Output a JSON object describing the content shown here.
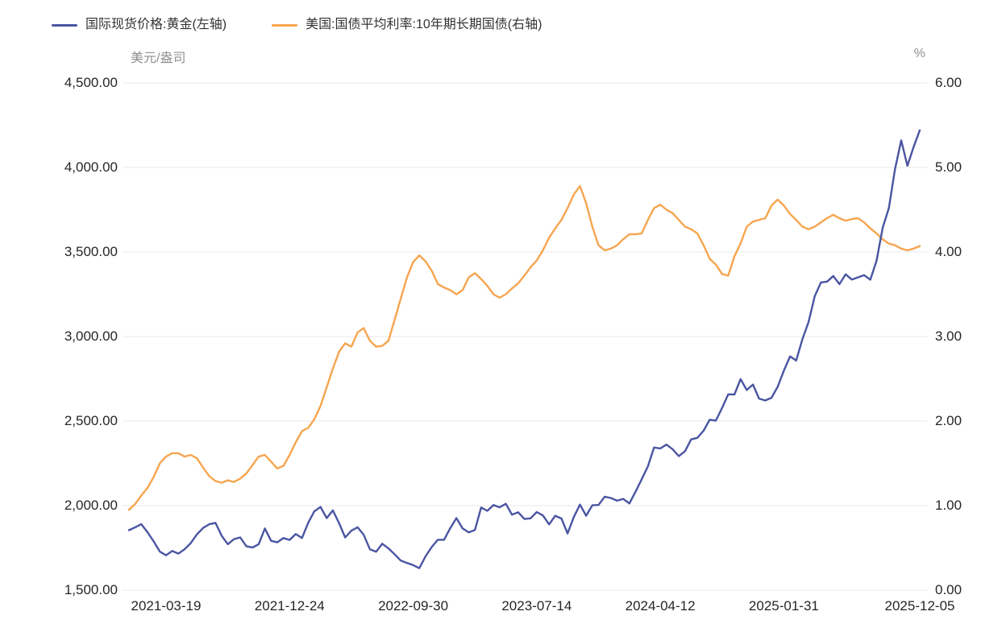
{
  "chart_data": {
    "type": "line",
    "title": "",
    "legend_position": "top-left",
    "grid": "horizontal",
    "grid_color": "#e8e8e8",
    "n_points": 129,
    "x_tick_labels": [
      "2021-03-19",
      "2021-12-24",
      "2022-09-30",
      "2023-07-14",
      "2024-04-12",
      "2025-01-31",
      "2025-12-05"
    ],
    "x_tick_indices": [
      6,
      26,
      46,
      66,
      86,
      106,
      128
    ],
    "left_axis": {
      "label": "美元/盎司",
      "min": 1500,
      "max": 4500,
      "tick_step": 500,
      "tick_labels": [
        "4,500.00",
        "4,000.00",
        "3,500.00",
        "3,000.00",
        "2,500.00",
        "2,000.00",
        "1,500.00"
      ]
    },
    "right_axis": {
      "label": "%",
      "min": 0,
      "max": 6,
      "tick_step": 1,
      "tick_labels": [
        "6.00",
        "5.00",
        "4.00",
        "3.00",
        "2.00",
        "1.00",
        "0.00"
      ]
    },
    "series": [
      {
        "name": "国际现货价格:黄金(左轴)",
        "axis": "left",
        "color": "#4a55a2",
        "values": [
          1855,
          1872,
          1890,
          1843,
          1788,
          1728,
          1706,
          1732,
          1716,
          1742,
          1778,
          1830,
          1868,
          1890,
          1898,
          1822,
          1772,
          1802,
          1812,
          1760,
          1752,
          1772,
          1865,
          1792,
          1783,
          1808,
          1797,
          1832,
          1808,
          1898,
          1966,
          1992,
          1926,
          1972,
          1897,
          1812,
          1852,
          1872,
          1827,
          1742,
          1727,
          1775,
          1747,
          1712,
          1675,
          1661,
          1648,
          1630,
          1700,
          1755,
          1798,
          1798,
          1866,
          1926,
          1865,
          1842,
          1856,
          1989,
          1969,
          2004,
          1990,
          2011,
          1946,
          1961,
          1921,
          1925,
          1962,
          1942,
          1889,
          1940,
          1924,
          1835,
          1932,
          2006,
          1940,
          2002,
          2004,
          2053,
          2045,
          2029,
          2040,
          2013,
          2083,
          2156,
          2233,
          2344,
          2338,
          2361,
          2334,
          2293,
          2322,
          2392,
          2401,
          2443,
          2508,
          2503,
          2578,
          2658,
          2657,
          2748,
          2684,
          2716,
          2633,
          2622,
          2638,
          2703,
          2798,
          2883,
          2858,
          2984,
          3085,
          3238,
          3320,
          3325,
          3358,
          3310,
          3368,
          3337,
          3350,
          3363,
          3336,
          3448,
          3643,
          3760,
          3990,
          4160,
          4010,
          4120,
          4220
        ]
      },
      {
        "name": "美国:国债平均利率:10年期长期国债(右轴)",
        "axis": "right",
        "color": "#f6a54f",
        "values": [
          0.95,
          1.02,
          1.12,
          1.21,
          1.34,
          1.5,
          1.58,
          1.62,
          1.62,
          1.58,
          1.6,
          1.56,
          1.45,
          1.35,
          1.29,
          1.27,
          1.3,
          1.28,
          1.32,
          1.38,
          1.48,
          1.58,
          1.6,
          1.52,
          1.44,
          1.47,
          1.6,
          1.75,
          1.88,
          1.92,
          2.02,
          2.18,
          2.4,
          2.62,
          2.82,
          2.92,
          2.88,
          3.05,
          3.1,
          2.95,
          2.88,
          2.89,
          2.95,
          3.2,
          3.45,
          3.7,
          3.88,
          3.96,
          3.89,
          3.78,
          3.62,
          3.58,
          3.55,
          3.5,
          3.55,
          3.7,
          3.75,
          3.68,
          3.6,
          3.5,
          3.46,
          3.5,
          3.57,
          3.63,
          3.72,
          3.82,
          3.9,
          4.02,
          4.17,
          4.28,
          4.38,
          4.52,
          4.68,
          4.78,
          4.58,
          4.3,
          4.08,
          4.02,
          4.04,
          4.08,
          4.15,
          4.21,
          4.21,
          4.22,
          4.38,
          4.52,
          4.56,
          4.5,
          4.46,
          4.38,
          4.3,
          4.27,
          4.22,
          4.08,
          3.92,
          3.85,
          3.74,
          3.72,
          3.95,
          4.1,
          4.3,
          4.36,
          4.38,
          4.4,
          4.55,
          4.62,
          4.55,
          4.45,
          4.38,
          4.3,
          4.27,
          4.3,
          4.35,
          4.4,
          4.44,
          4.4,
          4.37,
          4.39,
          4.4,
          4.35,
          4.28,
          4.22,
          4.15,
          4.1,
          4.08,
          4.04,
          4.02,
          4.04,
          4.07
        ]
      }
    ]
  }
}
